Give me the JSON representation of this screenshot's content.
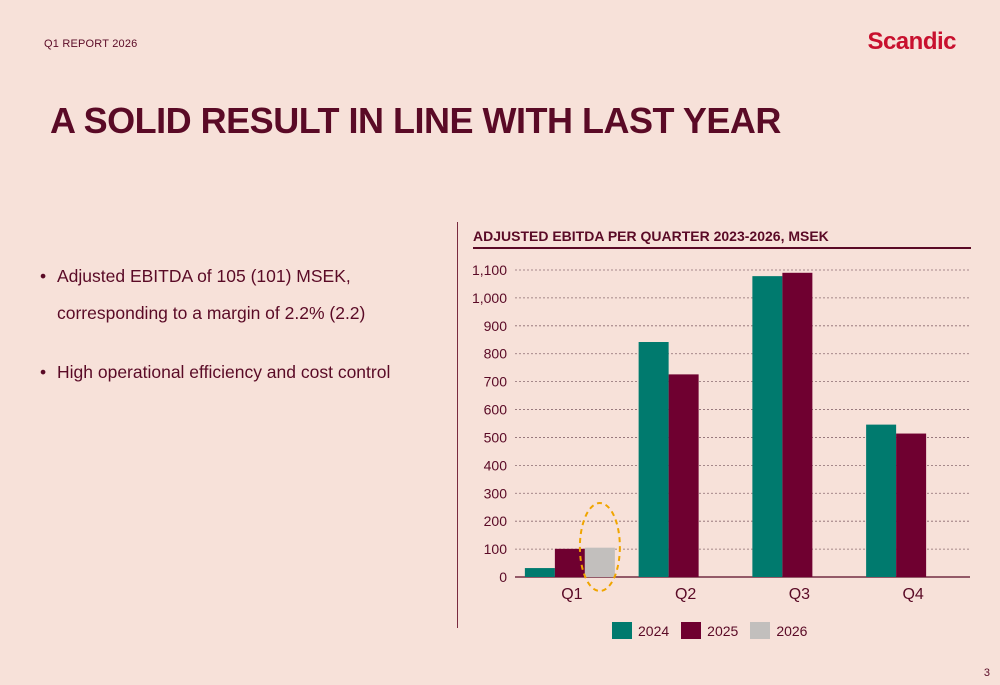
{
  "header": {
    "report_label": "Q1 REPORT 2026",
    "logo_text": "Scandic"
  },
  "title": "A SOLID RESULT IN LINE WITH LAST YEAR",
  "bullets": [
    "Adjusted EBITDA of 105 (101) MSEK, corresponding to a margin of 2.2% (2.2)",
    "High operational efficiency and cost control"
  ],
  "page_number": "3",
  "colors": {
    "background": "#f7e1d9",
    "primary_text": "#5a0a26",
    "logo": "#c8102e",
    "series_2024": "#007a6e",
    "series_2025": "#6f0030",
    "series_2026": "#c2bfbd",
    "highlight": "#f0a500"
  },
  "chart_data": {
    "type": "bar",
    "title": "ADJUSTED EBITDA PER QUARTER 2023-2026, MSEK",
    "categories": [
      "Q1",
      "Q2",
      "Q3",
      "Q4"
    ],
    "series": [
      {
        "name": "2024",
        "values": [
          32,
          842,
          1078,
          546
        ],
        "color": "#007a6e"
      },
      {
        "name": "2025",
        "values": [
          101,
          726,
          1090,
          514
        ],
        "color": "#6f0030"
      },
      {
        "name": "2026",
        "values": [
          105,
          null,
          null,
          null
        ],
        "color": "#c2bfbd"
      }
    ],
    "yticks": [
      0,
      100,
      200,
      300,
      400,
      500,
      600,
      700,
      800,
      900,
      1000,
      1100
    ],
    "ytick_labels": [
      "0",
      "100",
      "200",
      "300",
      "400",
      "500",
      "600",
      "700",
      "800",
      "900",
      "1,000",
      "1,100"
    ],
    "ylim": [
      0,
      1100
    ],
    "xlabel": "",
    "ylabel": "",
    "grid": true,
    "legend_position": "bottom",
    "annotation": "dashed ellipse highlighting Q1 2026"
  }
}
